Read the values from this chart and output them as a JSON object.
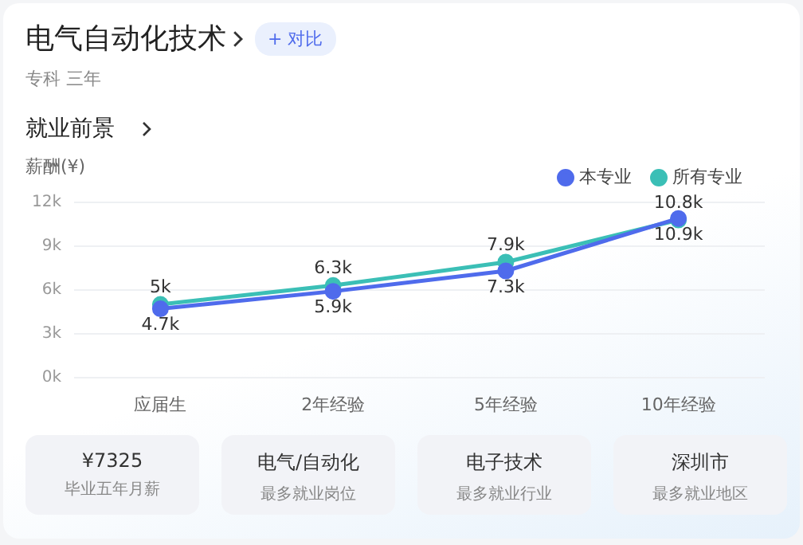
{
  "chart_data": {
    "type": "line",
    "title": "电气自动化技术",
    "subtitle": "专科 三年",
    "ylabel": "薪酬(¥)",
    "annotations": [
      "+ 对比",
      "就业前景",
      "¥7325",
      "毕业五年月薪",
      "电气/自动化",
      "最多就业岗位",
      "电子技术",
      "最多就业行业",
      "深圳市",
      "最多就业地区"
    ],
    "categories": [
      "应届生",
      "2年经验",
      "5年经验",
      "10年经验"
    ],
    "series": [
      {
        "name": "本专业",
        "color": "#4f6bec",
        "values": [
          4.7,
          5.9,
          7.3,
          10.9
        ],
        "value_labels": [
          "4.7k",
          "5.9k",
          "7.3k",
          "10.9k"
        ]
      },
      {
        "name": "所有专业",
        "color": "#3bbfb6",
        "values": [
          5,
          6.3,
          7.9,
          10.8
        ],
        "value_labels": [
          "5k",
          "6.3k",
          "7.9k",
          "10.8k"
        ]
      }
    ],
    "ylim": [
      0,
      12
    ],
    "yticks": [
      {
        "value": 0,
        "label": "0k"
      },
      {
        "value": 3,
        "label": "3k"
      },
      {
        "value": 6,
        "label": "6k"
      },
      {
        "value": 9,
        "label": "9k"
      },
      {
        "value": 12,
        "label": "12k"
      }
    ],
    "grid": "y",
    "legend": "top right",
    "marker": "circle",
    "line_style": "solid"
  }
}
